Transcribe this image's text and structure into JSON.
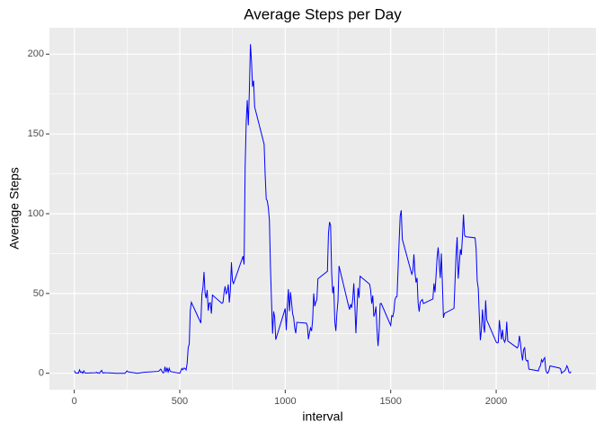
{
  "chart_data": {
    "type": "line",
    "title": "Average Steps per Day",
    "x_label": "interval",
    "y_label": "Average Steps",
    "color": "#0000ff",
    "x": [
      0,
      5,
      10,
      15,
      20,
      25,
      30,
      35,
      40,
      45,
      50,
      55,
      100,
      105,
      110,
      115,
      120,
      125,
      130,
      135,
      140,
      145,
      150,
      200,
      230,
      240,
      250,
      255,
      300,
      330,
      400,
      410,
      420,
      425,
      430,
      435,
      440,
      445,
      450,
      455,
      500,
      510,
      515,
      520,
      525,
      530,
      535,
      540,
      545,
      550,
      555,
      600,
      605,
      610,
      615,
      620,
      625,
      630,
      635,
      640,
      645,
      650,
      655,
      700,
      705,
      710,
      715,
      720,
      725,
      730,
      735,
      740,
      745,
      750,
      755,
      800,
      805,
      810,
      815,
      820,
      825,
      830,
      835,
      840,
      845,
      850,
      855,
      900,
      905,
      910,
      915,
      920,
      925,
      930,
      935,
      940,
      945,
      950,
      955,
      1000,
      1005,
      1010,
      1015,
      1020,
      1025,
      1030,
      1035,
      1040,
      1045,
      1050,
      1055,
      1100,
      1105,
      1110,
      1115,
      1120,
      1125,
      1130,
      1135,
      1140,
      1145,
      1150,
      1155,
      1200,
      1205,
      1210,
      1215,
      1220,
      1225,
      1230,
      1235,
      1240,
      1245,
      1250,
      1255,
      1300,
      1305,
      1310,
      1315,
      1320,
      1325,
      1330,
      1335,
      1340,
      1345,
      1350,
      1355,
      1400,
      1405,
      1410,
      1415,
      1420,
      1425,
      1430,
      1435,
      1440,
      1445,
      1450,
      1455,
      1500,
      1505,
      1510,
      1515,
      1520,
      1525,
      1530,
      1535,
      1540,
      1545,
      1550,
      1555,
      1600,
      1605,
      1610,
      1615,
      1620,
      1625,
      1630,
      1635,
      1640,
      1645,
      1650,
      1655,
      1700,
      1705,
      1710,
      1715,
      1720,
      1725,
      1730,
      1735,
      1740,
      1745,
      1750,
      1755,
      1800,
      1805,
      1810,
      1815,
      1820,
      1825,
      1830,
      1835,
      1840,
      1845,
      1850,
      1855,
      1900,
      1905,
      1910,
      1915,
      1920,
      1925,
      1930,
      1935,
      1940,
      1945,
      1950,
      1955,
      2000,
      2005,
      2010,
      2015,
      2020,
      2025,
      2030,
      2035,
      2040,
      2045,
      2050,
      2055,
      2100,
      2105,
      2110,
      2115,
      2120,
      2125,
      2130,
      2135,
      2140,
      2145,
      2150,
      2155,
      2200,
      2205,
      2210,
      2215,
      2220,
      2225,
      2230,
      2235,
      2240,
      2245,
      2250,
      2255,
      2300,
      2305,
      2310,
      2315,
      2320,
      2325,
      2330,
      2335,
      2340,
      2345,
      2350,
      2355
    ],
    "values": [
      1.7,
      0.3,
      0.1,
      0.2,
      0.1,
      2.1,
      0.5,
      0.9,
      0,
      1.5,
      0.3,
      0.1,
      0.3,
      0.7,
      0.1,
      0.3,
      0,
      1.1,
      1.8,
      0.2,
      0.2,
      0.4,
      0.3,
      0,
      0,
      0,
      1.5,
      0.9,
      0,
      0.6,
      1.2,
      2.6,
      0.3,
      0.4,
      4.1,
      0.7,
      3.5,
      0.8,
      3.1,
      1.1,
      0,
      3.0,
      2.2,
      3.3,
      3,
      2.1,
      6.1,
      16,
      18.3,
      39.5,
      44.5,
      31.5,
      49.3,
      53.8,
      63.5,
      50,
      47.1,
      52.2,
      39.3,
      44,
      44.2,
      37.4,
      49,
      43.8,
      44.4,
      50.5,
      54.5,
      49.9,
      51,
      55.7,
      44.3,
      52.3,
      69.5,
      57.8,
      56.2,
      73.4,
      68.2,
      129.4,
      157.5,
      171.2,
      155.4,
      177.3,
      206.2,
      195.9,
      179.6,
      183.4,
      167,
      143.5,
      124,
      109.1,
      108.1,
      103.7,
      96,
      66.2,
      45.2,
      24.8,
      38.8,
      35,
      21.1,
      40.6,
      27,
      42.4,
      52.7,
      38.9,
      50.8,
      44.3,
      37.4,
      34.7,
      28.3,
      25.1,
      31.9,
      31.4,
      29.7,
      21.3,
      25.5,
      28.4,
      26.5,
      33.4,
      50,
      42,
      44.6,
      46,
      59.2,
      63.9,
      87.7,
      94.8,
      92.8,
      63.4,
      50.2,
      54.5,
      32.4,
      26.5,
      37.7,
      45.1,
      67.3,
      42.3,
      39.9,
      43.3,
      41,
      46.2,
      56.4,
      42.8,
      25.1,
      40,
      53.5,
      47.3,
      60.8,
      55.8,
      52,
      43.6,
      48.7,
      35.5,
      37.5,
      41.8,
      27.5,
      17.1,
      26.1,
      43.6,
      43.8,
      30,
      36.1,
      35.5,
      38.8,
      46,
      47.8,
      48.1,
      65.3,
      82.9,
      98.7,
      102.1,
      84,
      62.1,
      64.1,
      74.5,
      63.2,
      56.9,
      59.8,
      43.9,
      38.6,
      44.7,
      45.5,
      46.2,
      43.7,
      46.6,
      56.3,
      50.7,
      61.2,
      72.7,
      78.9,
      68.9,
      59.7,
      75.1,
      56.5,
      34.8,
      37.5,
      40.7,
      58,
      74.7,
      85.3,
      59.3,
      67.8,
      77.7,
      74.2,
      85.3,
      99.5,
      86.6,
      85.6,
      84.9,
      77.8,
      58,
      53.4,
      36.3,
      20.7,
      27.4,
      40,
      30.2,
      25.5,
      45.7,
      33.5,
      19.6,
      19,
      19.3,
      33.3,
      26.8,
      21.2,
      27.3,
      21.3,
      19.5,
      21.3,
      32.3,
      20.2,
      15.9,
      17.2,
      23.5,
      19.2,
      12.5,
      8,
      14.7,
      16.3,
      8.7,
      7.8,
      8.1,
      2.6,
      1.5,
      3.7,
      4.8,
      8.5,
      7.1,
      8.7,
      9.8,
      2.2,
      0.3,
      0.1,
      1.6,
      4.6,
      3.3,
      2.8,
      0,
      0.8,
      1,
      1.6,
      2.6,
      4.7,
      3.3,
      0.6,
      0.2,
      1.1
    ],
    "xlim": [
      -117.75,
      2472.75
    ],
    "xticks": [
      0,
      500,
      1000,
      1500,
      2000
    ],
    "xminor": [
      250,
      750,
      1250,
      1750,
      2250
    ],
    "ylim": [
      -10.3,
      216.5
    ],
    "yticks": [
      0,
      50,
      100,
      150,
      200
    ],
    "yminor": [
      25,
      75,
      125,
      175
    ],
    "grid": true
  }
}
